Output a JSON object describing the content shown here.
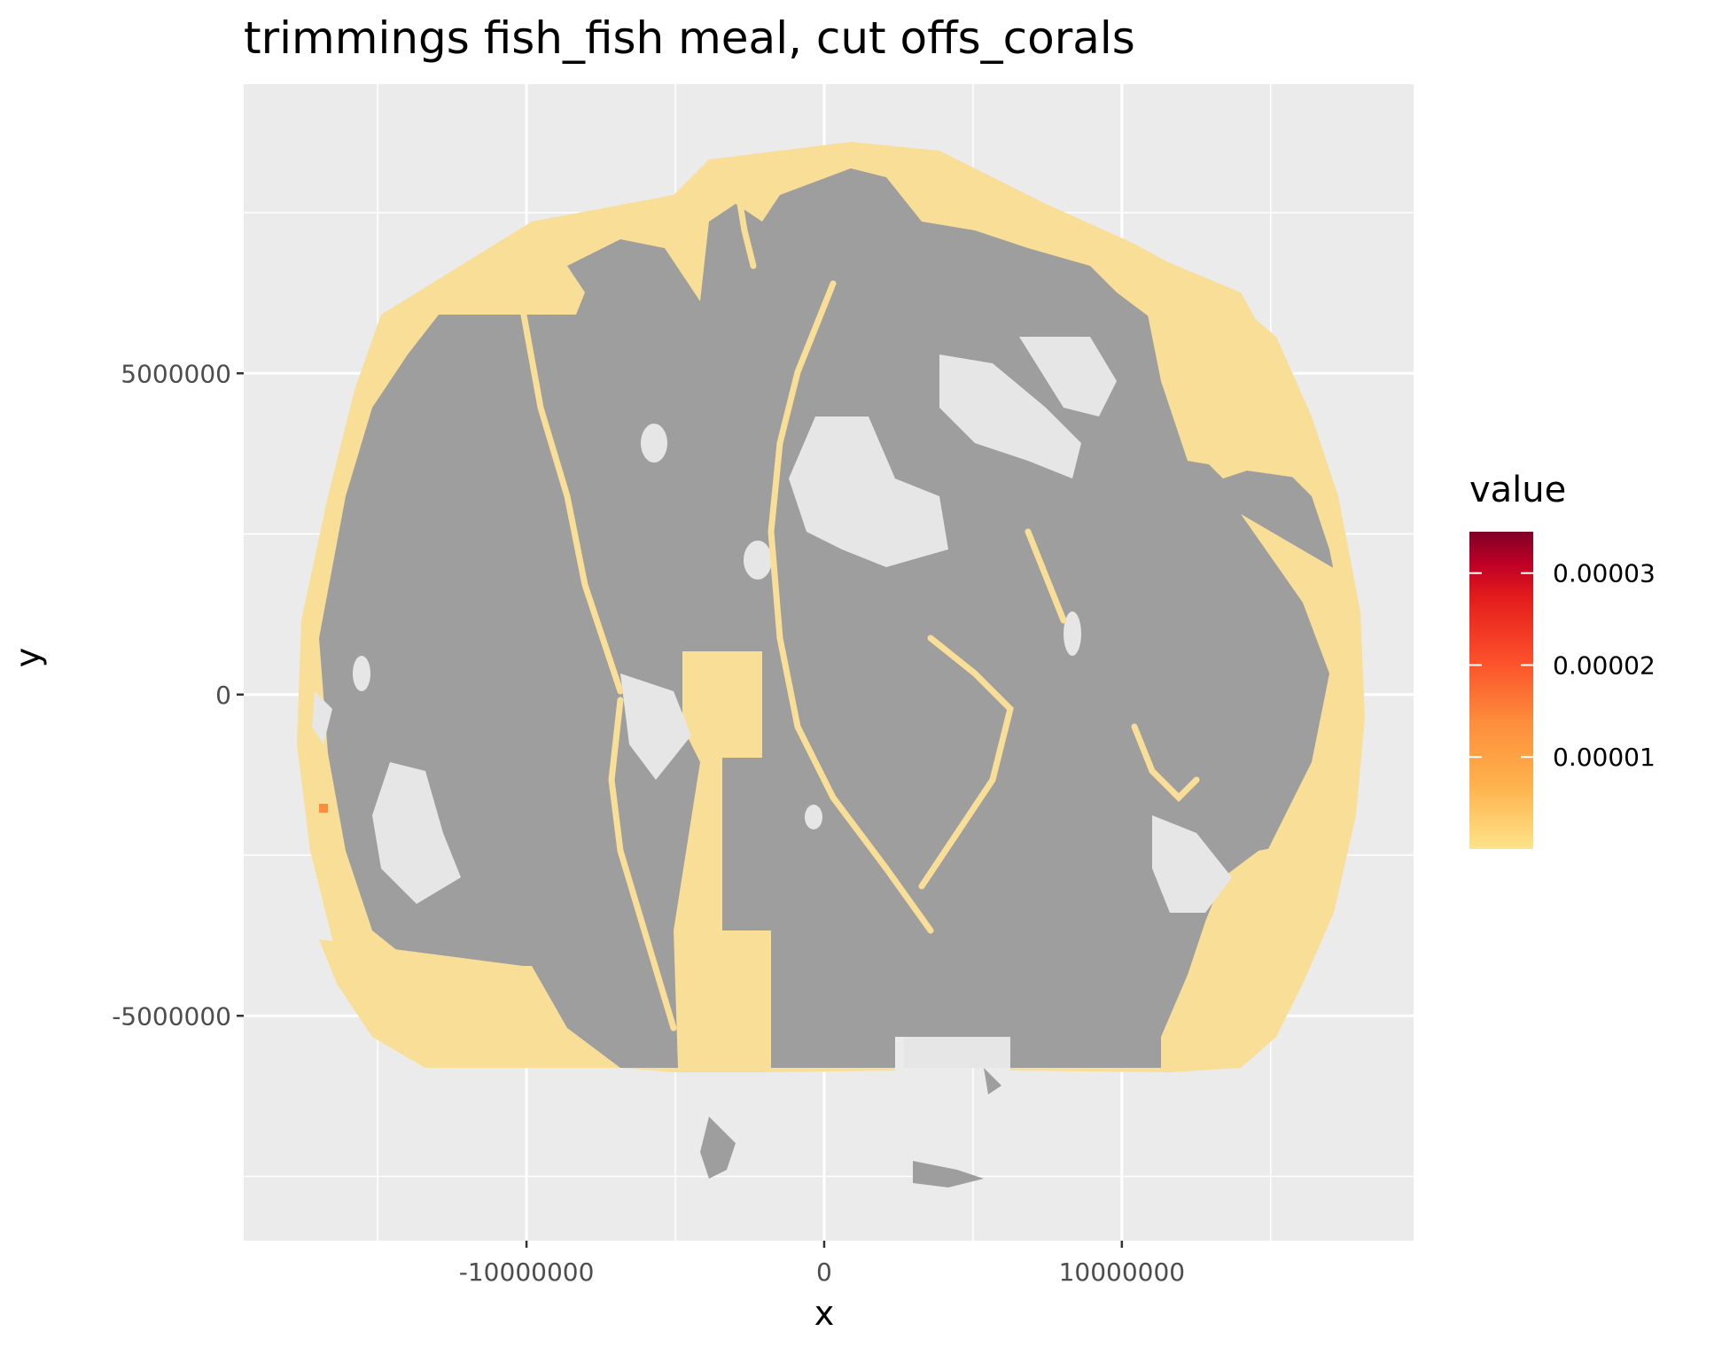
{
  "chart_data": {
    "type": "heatmap",
    "title": "trimmings fish_fish meal, cut offs_corals",
    "xlabel": "x",
    "ylabel": "y",
    "x_ticks": [
      {
        "value": -10000000,
        "label": "-10000000"
      },
      {
        "value": 0,
        "label": "0"
      },
      {
        "value": 10000000,
        "label": "10000000"
      }
    ],
    "y_ticks": [
      {
        "value": 5000000,
        "label": "5000000"
      },
      {
        "value": 0,
        "label": "0"
      },
      {
        "value": -5000000,
        "label": "-5000000"
      }
    ],
    "xlim": [
      -19500000,
      19800000
    ],
    "ylim": [
      -8500000,
      9500000
    ],
    "grid": true,
    "legend": {
      "title": "value",
      "placement": "right",
      "breaks": [
        {
          "value": 3e-05,
          "label": "0.00003"
        },
        {
          "value": 2e-05,
          "label": "0.00002"
        },
        {
          "value": 1e-05,
          "label": "0.00001"
        }
      ],
      "range": [
        0,
        3.45e-05
      ],
      "colors": [
        "#FFE38A",
        "#FEB24C",
        "#FD8D3C",
        "#FC4E2A",
        "#E31A1C",
        "#BD0026",
        "#800026"
      ]
    },
    "colors": {
      "panel": "#EBEBEB",
      "grid": "#FFFFFF",
      "land_or_no_data": "#9E9E9E",
      "low_value": "#F9DE97",
      "hot_spot": "#FD8D3C"
    },
    "projection": "pseudo-cylindrical (world)",
    "high_value_cells": [
      {
        "x": -16700000,
        "y": -1800000,
        "value": 1.2e-05
      }
    ]
  }
}
